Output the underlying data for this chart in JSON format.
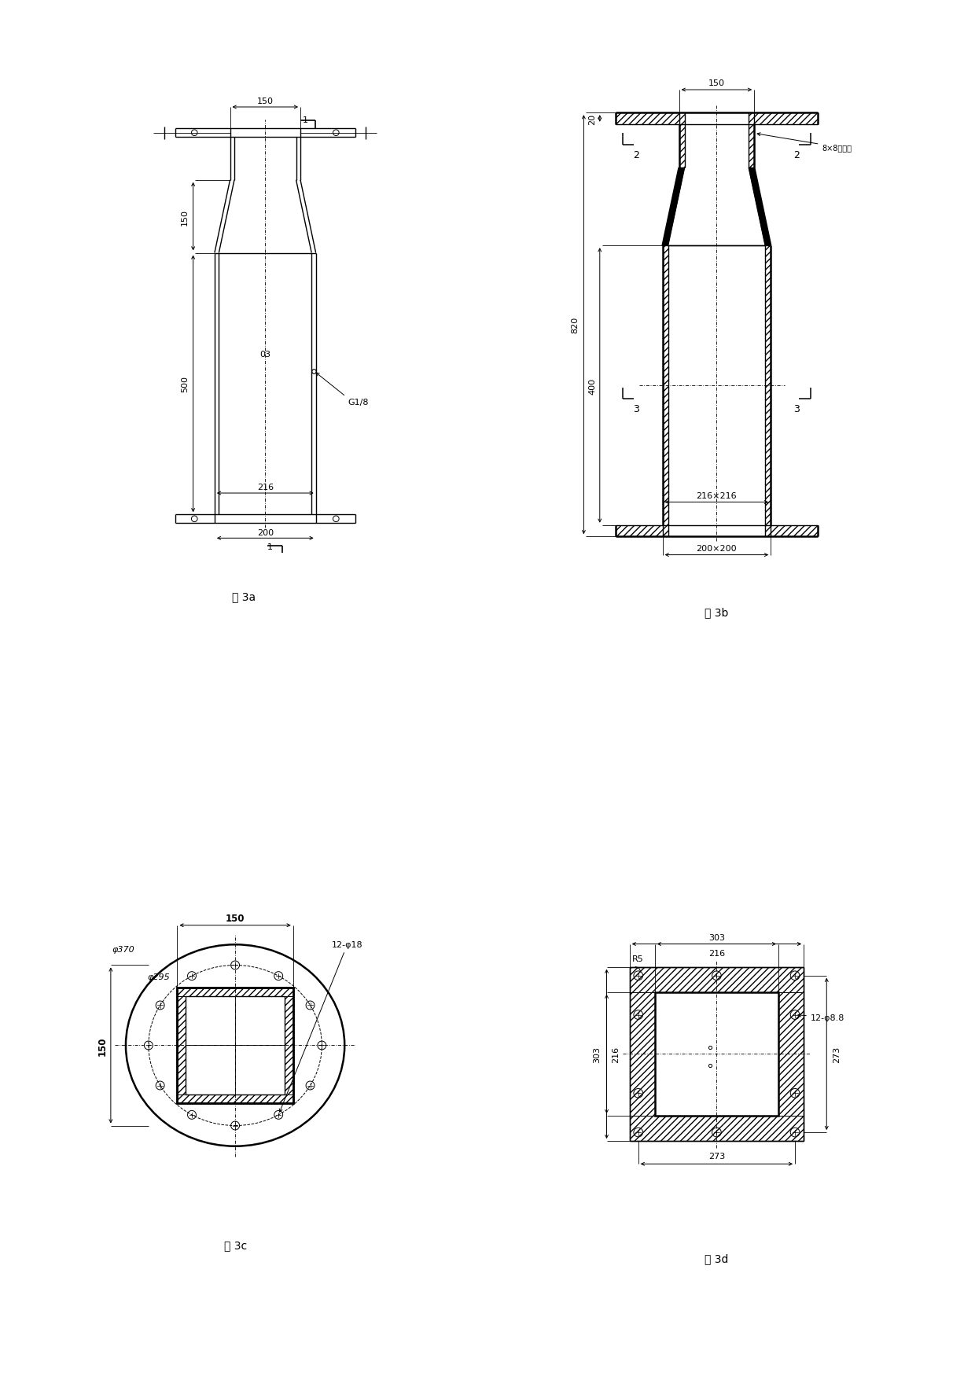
{
  "bg_color": "#ffffff",
  "fig_label_3a": "图 3a",
  "fig_label_3b": "图 3b",
  "fig_label_3c": "图 3c",
  "fig_label_3d": "图 3d"
}
